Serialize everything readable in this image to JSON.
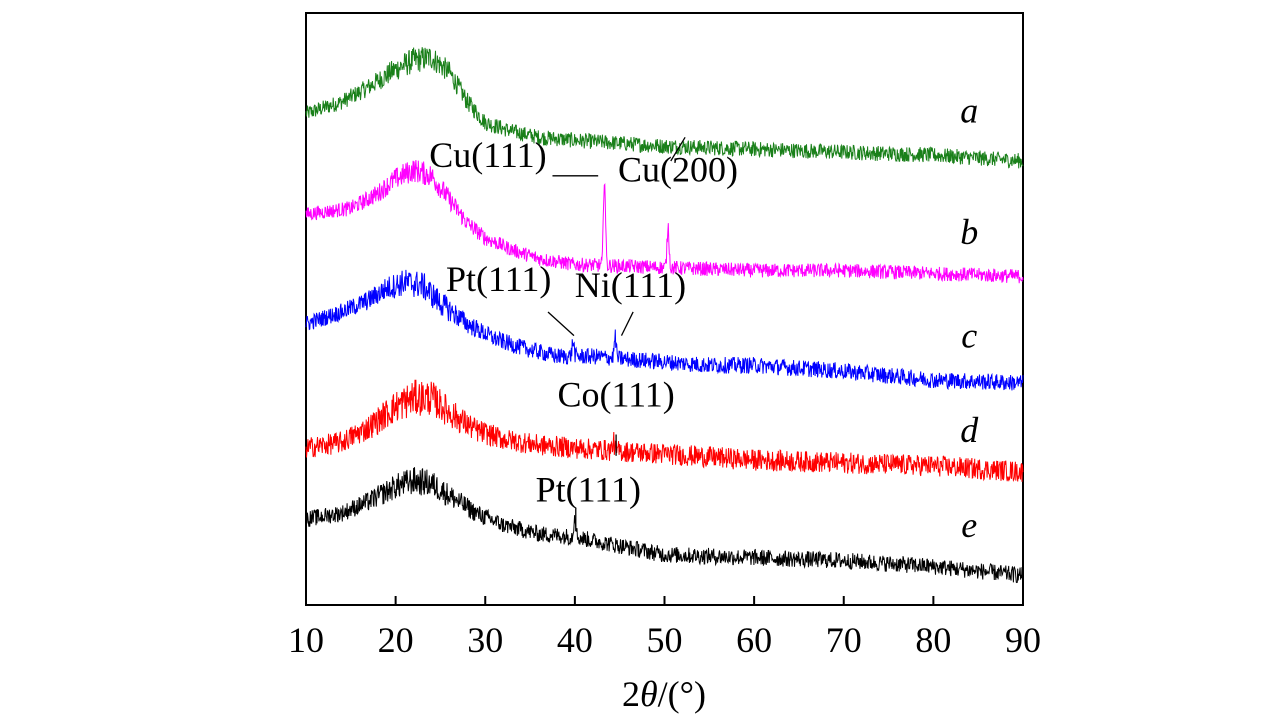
{
  "chart_data": {
    "type": "line",
    "title": "",
    "xlabel": "2θ/(°)",
    "xlabel_prefix": "2",
    "xlabel_symbol": "θ",
    "xlabel_suffix": "/(°)",
    "ylabel": "",
    "xlim": [
      10,
      90
    ],
    "xticks": [
      10,
      20,
      30,
      40,
      50,
      60,
      70,
      80,
      90
    ],
    "x_tick_labels": [
      "10",
      "20",
      "30",
      "40",
      "50",
      "60",
      "70",
      "80",
      "90"
    ],
    "y_ticks_shown": false,
    "ylim": [
      0,
      100
    ],
    "series": [
      {
        "name": "a",
        "color": "#1a801a",
        "noise": 2.6,
        "points": [
          [
            10,
            83
          ],
          [
            14,
            85
          ],
          [
            17,
            87.5
          ],
          [
            20,
            90.5
          ],
          [
            22,
            92
          ],
          [
            24,
            92.5
          ],
          [
            26,
            90
          ],
          [
            28,
            85
          ],
          [
            30,
            81.5
          ],
          [
            33,
            80
          ],
          [
            36,
            79
          ],
          [
            40,
            78.5
          ],
          [
            50,
            77.5
          ],
          [
            60,
            77
          ],
          [
            70,
            76.5
          ],
          [
            80,
            76
          ],
          [
            90,
            75
          ]
        ]
      },
      {
        "name": "b",
        "color": "#ff00ff",
        "noise": 2.4,
        "points": [
          [
            10,
            66
          ],
          [
            15,
            67
          ],
          [
            18,
            69.5
          ],
          [
            20,
            72
          ],
          [
            22,
            73.5
          ],
          [
            24,
            72.5
          ],
          [
            26,
            68.5
          ],
          [
            28,
            64.5
          ],
          [
            30,
            62
          ],
          [
            33,
            60
          ],
          [
            36,
            58.5
          ],
          [
            40,
            57.5
          ],
          [
            50,
            57
          ],
          [
            60,
            56.5
          ],
          [
            70,
            56.5
          ],
          [
            80,
            56
          ],
          [
            90,
            55.5
          ]
        ]
      },
      {
        "name": "c",
        "color": "#0000ff",
        "noise": 2.8,
        "points": [
          [
            10,
            47.5
          ],
          [
            14,
            49.5
          ],
          [
            17,
            51.5
          ],
          [
            19,
            53.5
          ],
          [
            21,
            54.5
          ],
          [
            23,
            54
          ],
          [
            25,
            51
          ],
          [
            28,
            47.5
          ],
          [
            31,
            45
          ],
          [
            34,
            43.5
          ],
          [
            38,
            42
          ],
          [
            42,
            42
          ],
          [
            46,
            41.5
          ],
          [
            55,
            40.5
          ],
          [
            60,
            40.5
          ],
          [
            70,
            39.5
          ],
          [
            80,
            38
          ],
          [
            90,
            37.5
          ]
        ]
      },
      {
        "name": "d",
        "color": "#ff0000",
        "noise": 3.6,
        "points": [
          [
            10,
            26.5
          ],
          [
            14,
            27.5
          ],
          [
            17,
            30
          ],
          [
            20,
            33.5
          ],
          [
            22,
            35
          ],
          [
            24,
            35
          ],
          [
            26,
            32.5
          ],
          [
            29,
            29.5
          ],
          [
            32,
            28
          ],
          [
            36,
            27
          ],
          [
            40,
            26.5
          ],
          [
            50,
            25.5
          ],
          [
            60,
            24.5
          ],
          [
            70,
            24
          ],
          [
            80,
            23.5
          ],
          [
            90,
            22.5
          ]
        ]
      },
      {
        "name": "e",
        "color": "#000000",
        "noise": 2.8,
        "points": [
          [
            10,
            14.5
          ],
          [
            14,
            15.5
          ],
          [
            17,
            17.5
          ],
          [
            20,
            20
          ],
          [
            22,
            21
          ],
          [
            24,
            20.5
          ],
          [
            26,
            18.5
          ],
          [
            29,
            15.5
          ],
          [
            32,
            13.5
          ],
          [
            36,
            12
          ],
          [
            40,
            11.5
          ],
          [
            45,
            10
          ],
          [
            50,
            8.5
          ],
          [
            60,
            8
          ],
          [
            70,
            7.5
          ],
          [
            80,
            6.5
          ],
          [
            90,
            5
          ]
        ]
      }
    ],
    "peaks": [
      {
        "series": "b",
        "x": 43.3,
        "height": 15,
        "label": "Cu(111)"
      },
      {
        "series": "b",
        "x": 50.4,
        "height": 7,
        "label": "Cu(200)"
      },
      {
        "series": "c",
        "x": 39.8,
        "height": 2.5,
        "label": "Pt(111)"
      },
      {
        "series": "c",
        "x": 44.5,
        "height": 3.5,
        "label": "Ni(111)"
      },
      {
        "series": "d",
        "x": 44.3,
        "height": 1.5,
        "label": "Co(111)"
      },
      {
        "series": "e",
        "x": 40.0,
        "height": 4,
        "label": "Pt(111)"
      }
    ],
    "peak_annotations": [
      {
        "label": "Cu(111)",
        "leader": [
          [
            37.5,
            72.5
          ],
          [
            42.6,
            72.5
          ]
        ],
        "label_at": [
          30.3,
          74
        ]
      },
      {
        "label": "Cu(200)",
        "leader": [
          [
            52.3,
            79
          ],
          [
            50.7,
            75
          ]
        ],
        "label_at": [
          51.5,
          71.5
        ]
      },
      {
        "label": "Pt(111)",
        "leader": [
          [
            37,
            49.5
          ],
          [
            39.9,
            45.5
          ]
        ],
        "label_at": [
          31.5,
          53
        ]
      },
      {
        "label": "Ni(111)",
        "leader": [
          [
            46.5,
            49.5
          ],
          [
            45.2,
            45.5
          ]
        ],
        "label_at": [
          46.2,
          52
        ]
      },
      {
        "label": "Co(111)",
        "leader": [
          [
            44.6,
            28.8
          ],
          [
            44.6,
            25.2
          ]
        ],
        "label_at": [
          44.6,
          33.5
        ]
      },
      {
        "label": "Pt(111)",
        "leader": [
          [
            40.1,
            16.3
          ],
          [
            40.1,
            12.5
          ]
        ],
        "label_at": [
          41.5,
          17.5
        ]
      }
    ],
    "series_labels": [
      {
        "text": "a",
        "x": 84,
        "y": 81.5
      },
      {
        "text": "b",
        "x": 84,
        "y": 61
      },
      {
        "text": "c",
        "x": 84,
        "y": 43.5
      },
      {
        "text": "d",
        "x": 84,
        "y": 27.5
      },
      {
        "text": "e",
        "x": 84,
        "y": 11.5
      }
    ]
  }
}
